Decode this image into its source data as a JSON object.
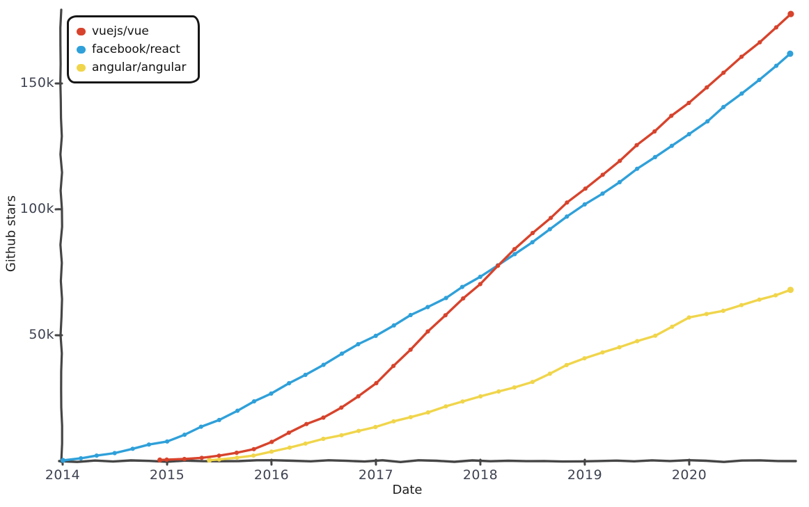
{
  "figure": {
    "xlabel": "Date",
    "ylabel": "Github stars",
    "background": "#ffffff",
    "axis_color": "#454545",
    "tick_label_color": "#3d4250"
  },
  "legend": {
    "position": "top-left",
    "items": [
      {
        "label": "vuejs/vue",
        "color": "#d7432c"
      },
      {
        "label": "facebook/react",
        "color": "#2fa0d9"
      },
      {
        "label": "angular/angular",
        "color": "#f0d54b"
      }
    ]
  },
  "axes": {
    "x_ticks": [
      {
        "label": "2014",
        "year": 2014
      },
      {
        "label": "2015",
        "year": 2015
      },
      {
        "label": "2016",
        "year": 2016
      },
      {
        "label": "2017",
        "year": 2017
      },
      {
        "label": "2018",
        "year": 2018
      },
      {
        "label": "2019",
        "year": 2019
      },
      {
        "label": "2020",
        "year": 2020
      }
    ],
    "y_ticks": [
      {
        "label": "50k",
        "value": 50
      },
      {
        "label": "100k",
        "value": 100
      },
      {
        "label": "150k",
        "value": 150
      }
    ]
  },
  "chart_data": {
    "type": "line",
    "title": "",
    "xlabel": "Date",
    "ylabel": "Github stars",
    "x_range": [
      2014,
      2021
    ],
    "y_range_thousands": [
      0,
      180
    ],
    "grid": false,
    "legend_position": "top-left",
    "units": "GitHub stars in thousands",
    "style": "xkcd-hand-drawn",
    "series": [
      {
        "name": "facebook/react",
        "color": "#2fa0d9",
        "points": [
          [
            2014.0,
            0.3
          ],
          [
            2014.17,
            1.2
          ],
          [
            2014.33,
            2.3
          ],
          [
            2014.5,
            3.3
          ],
          [
            2014.67,
            4.8
          ],
          [
            2014.83,
            6.3
          ],
          [
            2015.0,
            8
          ],
          [
            2015.17,
            10.5
          ],
          [
            2015.33,
            13.5
          ],
          [
            2015.5,
            16.5
          ],
          [
            2015.67,
            20
          ],
          [
            2015.83,
            23.5
          ],
          [
            2016.0,
            27
          ],
          [
            2016.17,
            31
          ],
          [
            2016.33,
            34.5
          ],
          [
            2016.5,
            38.5
          ],
          [
            2016.67,
            42.5
          ],
          [
            2016.83,
            46.5
          ],
          [
            2017.0,
            50
          ],
          [
            2017.17,
            54
          ],
          [
            2017.33,
            58
          ],
          [
            2017.5,
            61
          ],
          [
            2017.67,
            65
          ],
          [
            2017.83,
            69
          ],
          [
            2018.0,
            73
          ],
          [
            2018.17,
            77.5
          ],
          [
            2018.33,
            82
          ],
          [
            2018.5,
            87
          ],
          [
            2018.67,
            92
          ],
          [
            2018.83,
            97
          ],
          [
            2019.0,
            102
          ],
          [
            2019.17,
            106.5
          ],
          [
            2019.33,
            111
          ],
          [
            2019.5,
            116
          ],
          [
            2019.67,
            120.5
          ],
          [
            2019.83,
            125
          ],
          [
            2020.0,
            130
          ],
          [
            2020.17,
            135
          ],
          [
            2020.33,
            140.5
          ],
          [
            2020.5,
            146
          ],
          [
            2020.67,
            151.5
          ],
          [
            2020.83,
            157
          ],
          [
            2020.97,
            162
          ]
        ]
      },
      {
        "name": "angular/angular",
        "color": "#f0d54b",
        "points": [
          [
            2015.4,
            0.2
          ],
          [
            2015.5,
            0.6
          ],
          [
            2015.67,
            1.3
          ],
          [
            2015.83,
            2.3
          ],
          [
            2016.0,
            4
          ],
          [
            2016.17,
            5.6
          ],
          [
            2016.33,
            7.1
          ],
          [
            2016.5,
            8.7
          ],
          [
            2016.67,
            10.4
          ],
          [
            2016.83,
            12
          ],
          [
            2017.0,
            13.8
          ],
          [
            2017.17,
            15.6
          ],
          [
            2017.33,
            17.5
          ],
          [
            2017.5,
            19.5
          ],
          [
            2017.67,
            21.5
          ],
          [
            2017.83,
            23.6
          ],
          [
            2018.0,
            25.8
          ],
          [
            2018.17,
            27.6
          ],
          [
            2018.33,
            29.5
          ],
          [
            2018.5,
            31.5
          ],
          [
            2018.67,
            34.5
          ],
          [
            2018.83,
            38
          ],
          [
            2019.0,
            41
          ],
          [
            2019.17,
            43
          ],
          [
            2019.33,
            45
          ],
          [
            2019.5,
            47.5
          ],
          [
            2019.67,
            50
          ],
          [
            2019.83,
            53.5
          ],
          [
            2020.0,
            57
          ],
          [
            2020.17,
            58.5
          ],
          [
            2020.33,
            59.8
          ],
          [
            2020.5,
            62
          ],
          [
            2020.67,
            64
          ],
          [
            2020.83,
            66
          ],
          [
            2020.97,
            67.8
          ]
        ]
      },
      {
        "name": "vuejs/vue",
        "color": "#d7432c",
        "points": [
          [
            2014.93,
            0.2
          ],
          [
            2015.0,
            0.5
          ],
          [
            2015.17,
            0.9
          ],
          [
            2015.33,
            1.4
          ],
          [
            2015.5,
            2.2
          ],
          [
            2015.67,
            3.2
          ],
          [
            2015.83,
            4.8
          ],
          [
            2016.0,
            7.5
          ],
          [
            2016.17,
            11
          ],
          [
            2016.33,
            14.5
          ],
          [
            2016.5,
            17.5
          ],
          [
            2016.67,
            21.5
          ],
          [
            2016.83,
            26
          ],
          [
            2017.0,
            31
          ],
          [
            2017.17,
            38
          ],
          [
            2017.33,
            44.5
          ],
          [
            2017.5,
            51.5
          ],
          [
            2017.67,
            58
          ],
          [
            2017.83,
            64.5
          ],
          [
            2018.0,
            70.5
          ],
          [
            2018.17,
            77.5
          ],
          [
            2018.33,
            84
          ],
          [
            2018.5,
            90.5
          ],
          [
            2018.67,
            96.5
          ],
          [
            2018.83,
            102.5
          ],
          [
            2019.0,
            108
          ],
          [
            2019.17,
            114
          ],
          [
            2019.33,
            119.5
          ],
          [
            2019.5,
            125.5
          ],
          [
            2019.67,
            131
          ],
          [
            2019.83,
            137
          ],
          [
            2020.0,
            142.5
          ],
          [
            2020.17,
            148.5
          ],
          [
            2020.33,
            154.5
          ],
          [
            2020.5,
            160.5
          ],
          [
            2020.67,
            166.5
          ],
          [
            2020.83,
            172
          ],
          [
            2020.97,
            177.5
          ]
        ]
      }
    ]
  }
}
